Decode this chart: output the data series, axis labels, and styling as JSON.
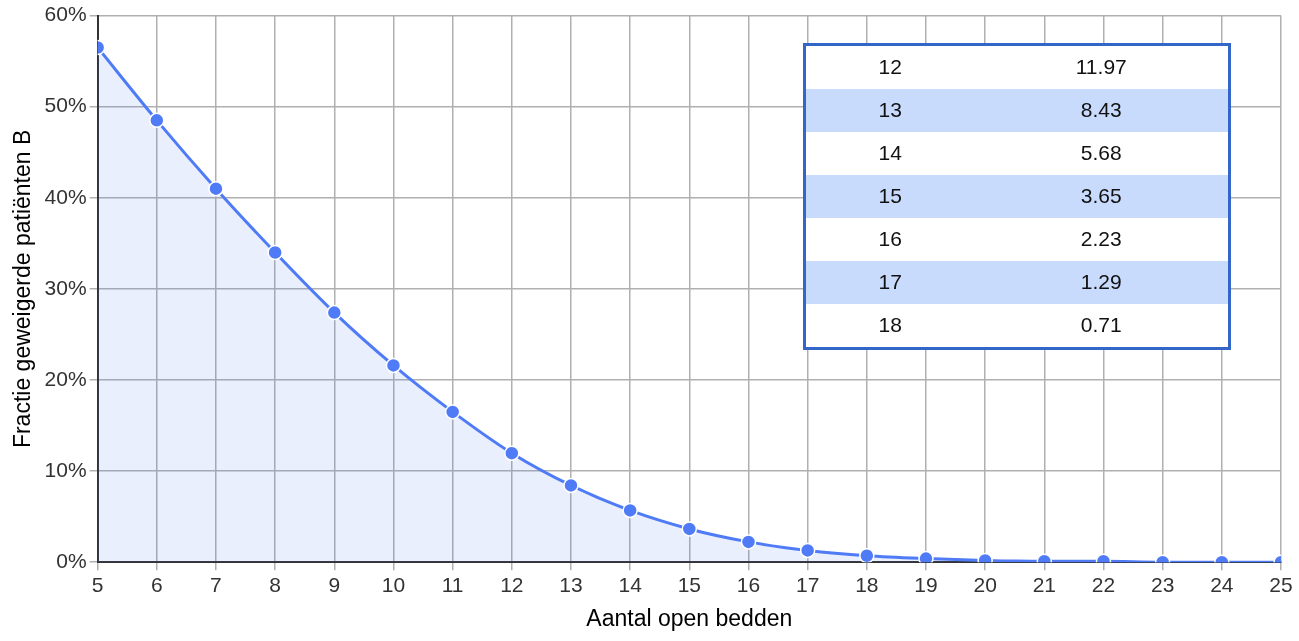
{
  "chart_data": {
    "type": "area",
    "xlabel": "Aantal open bedden",
    "ylabel": "Fractie geweigerde patiënten B",
    "x": [
      5,
      6,
      7,
      8,
      9,
      10,
      11,
      12,
      13,
      14,
      15,
      16,
      17,
      18,
      19,
      20,
      21,
      22,
      23,
      24,
      25
    ],
    "values": [
      56.5,
      48.5,
      41.0,
      34.0,
      27.4,
      21.6,
      16.5,
      11.97,
      8.43,
      5.68,
      3.65,
      2.23,
      1.29,
      0.71,
      0.4,
      0.2,
      0.1,
      0.1,
      0.0,
      0.0,
      0.0
    ],
    "annotations": [
      "12",
      "11.97",
      "13",
      "8.43",
      "14",
      "5.68",
      "15",
      "3.65",
      "16",
      "2.23",
      "17",
      "1.29",
      "18",
      "0.71"
    ],
    "color": "#4f7bf7",
    "xlim": [
      5,
      25
    ],
    "xticks": [
      5,
      6,
      7,
      8,
      9,
      10,
      11,
      12,
      13,
      14,
      15,
      16,
      17,
      18,
      19,
      20,
      21,
      22,
      23,
      24,
      25
    ],
    "ylim": [
      0,
      60
    ],
    "yticks": [
      {
        "value": 0,
        "label": "0%"
      },
      {
        "value": 10,
        "label": "10%"
      },
      {
        "value": 20,
        "label": "20%"
      },
      {
        "value": 30,
        "label": "30%"
      },
      {
        "value": 40,
        "label": "40%"
      },
      {
        "value": 50,
        "label": "50%"
      },
      {
        "value": 60,
        "label": "60%"
      }
    ],
    "grid": true,
    "marker": "circle",
    "line_style": "solid",
    "legend": false
  }
}
